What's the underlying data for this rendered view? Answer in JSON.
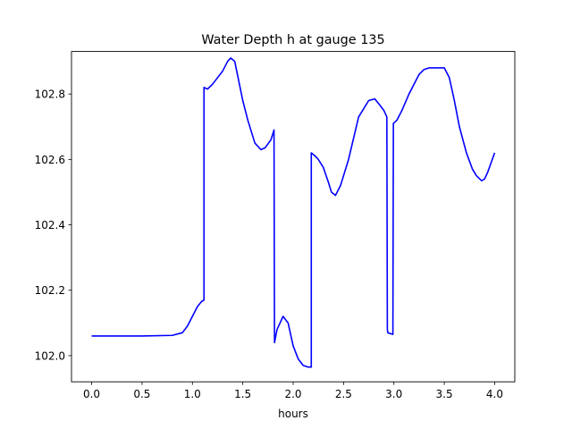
{
  "chart_data": {
    "type": "line",
    "title": "Water Depth h at gauge 135",
    "xlabel": "hours",
    "ylabel": "",
    "xlim": [
      -0.2,
      4.2
    ],
    "ylim": [
      101.92,
      102.93
    ],
    "xticks": [
      0.0,
      0.5,
      1.0,
      1.5,
      2.0,
      2.5,
      3.0,
      3.5,
      4.0
    ],
    "xtick_labels": [
      "0.0",
      "0.5",
      "1.0",
      "1.5",
      "2.0",
      "2.5",
      "3.0",
      "3.5",
      "4.0"
    ],
    "yticks": [
      102.0,
      102.2,
      102.4,
      102.6,
      102.8
    ],
    "ytick_labels": [
      "102.0",
      "102.2",
      "102.4",
      "102.6",
      "102.8"
    ],
    "grid": false,
    "legend": "none",
    "series": [
      {
        "color": "#0000ff",
        "x": [
          0.0,
          0.5,
          0.8,
          0.9,
          0.95,
          1.0,
          1.05,
          1.09,
          1.115,
          1.115,
          1.15,
          1.2,
          1.3,
          1.35,
          1.38,
          1.42,
          1.5,
          1.55,
          1.62,
          1.68,
          1.72,
          1.78,
          1.81,
          1.815,
          1.84,
          1.9,
          1.95,
          2.0,
          2.05,
          2.1,
          2.15,
          2.18,
          2.18,
          2.2,
          2.22,
          2.25,
          2.3,
          2.35,
          2.38,
          2.42,
          2.47,
          2.55,
          2.65,
          2.75,
          2.81,
          2.85,
          2.9,
          2.93,
          2.935,
          2.94,
          2.99,
          2.995,
          3.03,
          3.08,
          3.15,
          3.25,
          3.3,
          3.35,
          3.4,
          3.5,
          3.55,
          3.6,
          3.65,
          3.72,
          3.78,
          3.82,
          3.87,
          3.9,
          3.93,
          4.0
        ],
        "y": [
          102.06,
          102.06,
          102.062,
          102.07,
          102.09,
          102.12,
          102.15,
          102.165,
          102.17,
          102.82,
          102.815,
          102.83,
          102.87,
          102.9,
          102.91,
          102.9,
          102.78,
          102.72,
          102.65,
          102.63,
          102.635,
          102.66,
          102.69,
          102.04,
          102.08,
          102.12,
          102.1,
          102.03,
          101.99,
          101.97,
          101.965,
          101.965,
          102.62,
          102.615,
          102.61,
          102.6,
          102.575,
          102.53,
          102.5,
          102.49,
          102.52,
          102.6,
          102.73,
          102.78,
          102.785,
          102.77,
          102.75,
          102.73,
          102.08,
          102.07,
          102.065,
          102.71,
          102.72,
          102.75,
          102.8,
          102.86,
          102.875,
          102.88,
          102.88,
          102.88,
          102.85,
          102.78,
          102.7,
          102.62,
          102.57,
          102.55,
          102.535,
          102.54,
          102.56,
          102.62
        ]
      }
    ]
  }
}
